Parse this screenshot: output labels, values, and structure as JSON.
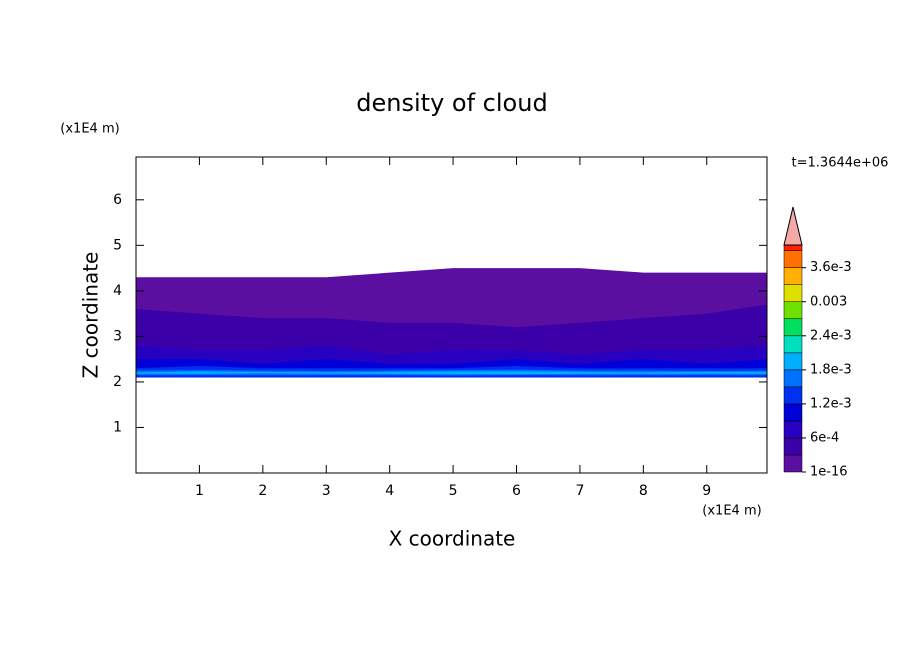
{
  "chart_data": {
    "type": "contour",
    "title": "density of cloud",
    "x_label": "X coordinate",
    "y_label": "Z coordinate",
    "x_unit": "(x1E4 m)",
    "y_unit": "(x1E4 m)",
    "time_label": "t=1.3644e+06",
    "xlim": [
      0,
      9.95
    ],
    "ylim": [
      0,
      6.94
    ],
    "xticks": [
      1,
      2,
      3,
      4,
      5,
      6,
      7,
      8,
      9
    ],
    "yticks": [
      1,
      2,
      3,
      4,
      5,
      6
    ],
    "x": [
      0,
      1,
      2,
      3,
      4,
      5,
      6,
      7,
      8,
      9,
      9.95
    ],
    "layers": [
      {
        "level": 1e-16,
        "bottom": [
          2.1,
          2.1,
          2.1,
          2.1,
          2.1,
          2.1,
          2.1,
          2.1,
          2.1,
          2.1,
          2.1
        ],
        "top": [
          4.3,
          4.3,
          4.3,
          4.3,
          4.4,
          4.5,
          4.5,
          4.5,
          4.4,
          4.4,
          4.4
        ]
      },
      {
        "level": 0.0003,
        "bottom": [
          2.1,
          2.1,
          2.1,
          2.1,
          2.1,
          2.1,
          2.1,
          2.1,
          2.1,
          2.1,
          2.1
        ],
        "top": [
          3.6,
          3.5,
          3.4,
          3.4,
          3.3,
          3.3,
          3.2,
          3.3,
          3.4,
          3.5,
          3.7
        ]
      },
      {
        "level": 0.0006,
        "bottom": [
          2.1,
          2.1,
          2.1,
          2.1,
          2.1,
          2.1,
          2.1,
          2.1,
          2.1,
          2.1,
          2.1
        ],
        "top": [
          2.8,
          2.7,
          2.7,
          2.8,
          2.6,
          2.7,
          2.7,
          2.6,
          2.7,
          2.7,
          2.8
        ]
      },
      {
        "level": 0.0009,
        "bottom": [
          2.1,
          2.1,
          2.1,
          2.1,
          2.1,
          2.1,
          2.1,
          2.1,
          2.1,
          2.1,
          2.1
        ],
        "top": [
          2.5,
          2.5,
          2.4,
          2.5,
          2.4,
          2.4,
          2.5,
          2.4,
          2.5,
          2.4,
          2.5
        ]
      },
      {
        "level": 0.0012,
        "bottom": [
          2.1,
          2.1,
          2.1,
          2.1,
          2.1,
          2.1,
          2.1,
          2.1,
          2.1,
          2.1,
          2.1
        ],
        "top": [
          2.3,
          2.35,
          2.3,
          2.3,
          2.3,
          2.3,
          2.35,
          2.3,
          2.3,
          2.3,
          2.3
        ]
      },
      {
        "level": 0.0015,
        "bottom": [
          2.15,
          2.15,
          2.15,
          2.15,
          2.15,
          2.14,
          2.15,
          2.15,
          2.15,
          2.15,
          2.15
        ],
        "top": [
          2.25,
          2.26,
          2.25,
          2.24,
          2.25,
          2.26,
          2.27,
          2.25,
          2.25,
          2.24,
          2.25
        ]
      },
      {
        "level": 0.0018,
        "bottom": [
          2.18,
          2.18,
          2.19,
          2.18,
          2.18,
          2.17,
          2.17,
          2.18,
          2.18,
          2.18,
          2.18
        ],
        "top": [
          2.21,
          2.23,
          2.22,
          2.21,
          2.22,
          2.23,
          2.23,
          2.22,
          2.21,
          2.22,
          2.22
        ]
      }
    ],
    "clim": [
      1e-16,
      0.004
    ],
    "clevels": [
      1e-16,
      0.0003,
      0.0006,
      0.0009,
      0.0012,
      0.0015,
      0.0018,
      0.0021,
      0.0024,
      0.0027,
      0.003,
      0.0033,
      0.0036,
      0.0039
    ],
    "ccolors": [
      "#5a0fa0",
      "#3c00a8",
      "#2800c0",
      "#0000d8",
      "#0030f0",
      "#0070ff",
      "#00b0ff",
      "#00e0c0",
      "#00e060",
      "#70e000",
      "#e0e000",
      "#ffb000",
      "#ff7000",
      "#ff2000"
    ],
    "extend_color": "#f4a8a8",
    "cticks": [
      {
        "value": 1e-16,
        "label": "1e-16"
      },
      {
        "value": 0.0006,
        "label": "6e-4"
      },
      {
        "value": 0.0012,
        "label": "1.2e-3"
      },
      {
        "value": 0.0018,
        "label": "1.8e-3"
      },
      {
        "value": 0.0024,
        "label": "2.4e-3"
      },
      0.003,
      {
        "value": 0.0036,
        "label": "3.6e-3"
      }
    ]
  }
}
